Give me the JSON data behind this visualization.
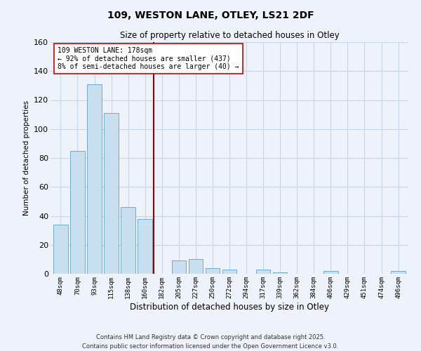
{
  "title": "109, WESTON LANE, OTLEY, LS21 2DF",
  "subtitle": "Size of property relative to detached houses in Otley",
  "xlabel": "Distribution of detached houses by size in Otley",
  "ylabel": "Number of detached properties",
  "bar_labels": [
    "48sqm",
    "70sqm",
    "93sqm",
    "115sqm",
    "138sqm",
    "160sqm",
    "182sqm",
    "205sqm",
    "227sqm",
    "250sqm",
    "272sqm",
    "294sqm",
    "317sqm",
    "339sqm",
    "362sqm",
    "384sqm",
    "406sqm",
    "429sqm",
    "451sqm",
    "474sqm",
    "496sqm"
  ],
  "bar_values": [
    34,
    85,
    131,
    111,
    46,
    38,
    0,
    9,
    10,
    4,
    3,
    0,
    3,
    1,
    0,
    0,
    2,
    0,
    0,
    0,
    2
  ],
  "bar_color": "#c8dff0",
  "bar_edge_color": "#6aaed6",
  "vline_color": "#8b0000",
  "annotation_text": "109 WESTON LANE: 178sqm\n← 92% of detached houses are smaller (437)\n8% of semi-detached houses are larger (40) →",
  "annotation_box_color": "#ffffff",
  "annotation_box_edge_color": "#cc0000",
  "ylim": [
    0,
    160
  ],
  "yticks": [
    0,
    20,
    40,
    60,
    80,
    100,
    120,
    140,
    160
  ],
  "grid_color": "#c8d4e8",
  "background_color": "#eef2fa",
  "footnote1": "Contains HM Land Registry data © Crown copyright and database right 2025.",
  "footnote2": "Contains public sector information licensed under the Open Government Licence v3.0."
}
